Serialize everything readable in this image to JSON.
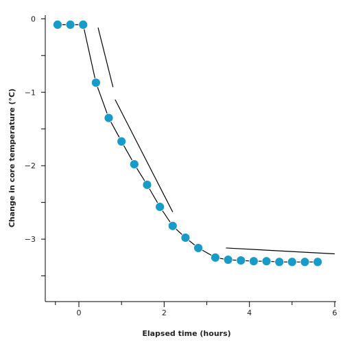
{
  "chart_data": {
    "type": "scatter",
    "xlabel": "Elapsed time (hours)",
    "ylabel": "Change in core temperature (°C)",
    "x_ticks": [
      {
        "value": 0,
        "label": "0"
      },
      {
        "value": 2,
        "label": "2"
      },
      {
        "value": 4,
        "label": "4"
      },
      {
        "value": 6,
        "label": "6"
      }
    ],
    "y_ticks": [
      {
        "value": 0,
        "label": "0"
      },
      {
        "value": -1,
        "label": "−1"
      },
      {
        "value": -2,
        "label": "−2"
      },
      {
        "value": -3,
        "label": "−3"
      }
    ],
    "xlim": [
      -0.55,
      6.0
    ],
    "ylim": [
      -3.85,
      0.05
    ],
    "grid": false,
    "legend": "none",
    "marker_color": "#199bc9",
    "line_color": "#000000",
    "series": [
      {
        "x": [
          -0.5,
          -0.2,
          0.1,
          0.4,
          0.7,
          1.0,
          1.3,
          1.6,
          1.9,
          2.2,
          2.5,
          2.8,
          3.2,
          3.5,
          3.8,
          4.1,
          4.4,
          4.7,
          5.0,
          5.3,
          5.6
        ],
        "y": [
          -0.08,
          -0.08,
          -0.08,
          -0.87,
          -1.35,
          -1.67,
          -1.98,
          -2.26,
          -2.56,
          -2.82,
          -2.98,
          -3.12,
          -3.25,
          -3.28,
          -3.29,
          -3.3,
          -3.3,
          -3.31,
          -3.31,
          -3.31,
          -3.31
        ]
      }
    ],
    "trend_lines": [
      {
        "x": [
          0.45,
          0.8
        ],
        "y": [
          -0.12,
          -0.93
        ]
      },
      {
        "x": [
          0.85,
          2.2
        ],
        "y": [
          -1.1,
          -2.63
        ]
      },
      {
        "x": [
          3.45,
          6.0
        ],
        "y": [
          -3.12,
          -3.2
        ]
      }
    ]
  }
}
